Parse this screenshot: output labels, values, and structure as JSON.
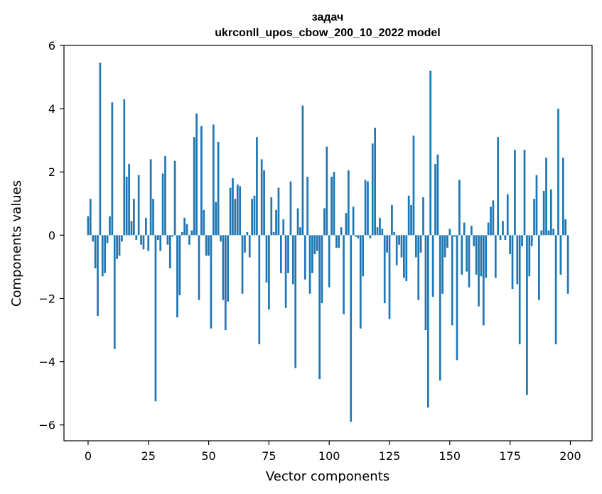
{
  "chart_data": {
    "type": "bar",
    "title_line1": "задач",
    "title_line2": "ukrconll_upos_cbow_200_10_2022 model",
    "xlabel": "Vector components",
    "ylabel": "Components values",
    "xlim": [
      -10,
      209
    ],
    "ylim": [
      -6.5,
      6
    ],
    "xticks": [
      0,
      25,
      50,
      75,
      100,
      125,
      150,
      175,
      200
    ],
    "yticks": [
      -6,
      -4,
      -2,
      0,
      2,
      4,
      6
    ],
    "ytick_labels": [
      "−6",
      "−4",
      "−2",
      "0",
      "2",
      "4",
      "6"
    ],
    "bar_color": "#1f77b4",
    "x": [
      0,
      1,
      2,
      3,
      4,
      5,
      6,
      7,
      8,
      9,
      10,
      11,
      12,
      13,
      14,
      15,
      16,
      17,
      18,
      19,
      20,
      21,
      22,
      23,
      24,
      25,
      26,
      27,
      28,
      29,
      30,
      31,
      32,
      33,
      34,
      35,
      36,
      37,
      38,
      39,
      40,
      41,
      42,
      43,
      44,
      45,
      46,
      47,
      48,
      49,
      50,
      51,
      52,
      53,
      54,
      55,
      56,
      57,
      58,
      59,
      60,
      61,
      62,
      63,
      64,
      65,
      66,
      67,
      68,
      69,
      70,
      71,
      72,
      73,
      74,
      75,
      76,
      77,
      78,
      79,
      80,
      81,
      82,
      83,
      84,
      85,
      86,
      87,
      88,
      89,
      90,
      91,
      92,
      93,
      94,
      95,
      96,
      97,
      98,
      99,
      100,
      101,
      102,
      103,
      104,
      105,
      106,
      107,
      108,
      109,
      110,
      111,
      112,
      113,
      114,
      115,
      116,
      117,
      118,
      119,
      120,
      121,
      122,
      123,
      124,
      125,
      126,
      127,
      128,
      129,
      130,
      131,
      132,
      133,
      134,
      135,
      136,
      137,
      138,
      139,
      140,
      141,
      142,
      143,
      144,
      145,
      146,
      147,
      148,
      149,
      150,
      151,
      152,
      153,
      154,
      155,
      156,
      157,
      158,
      159,
      160,
      161,
      162,
      163,
      164,
      165,
      166,
      167,
      168,
      169,
      170,
      171,
      172,
      173,
      174,
      175,
      176,
      177,
      178,
      179,
      180,
      181,
      182,
      183,
      184,
      185,
      186,
      187,
      188,
      189,
      190,
      191,
      192,
      193,
      194,
      195,
      196,
      197,
      198,
      199
    ],
    "values": [
      0.6,
      1.15,
      -0.2,
      -1.05,
      -2.55,
      5.45,
      -1.3,
      -1.2,
      -0.25,
      0.6,
      4.2,
      -3.6,
      -0.75,
      -0.65,
      -0.2,
      4.3,
      1.85,
      2.25,
      0.45,
      1.15,
      -0.15,
      1.9,
      -0.3,
      -0.45,
      0.55,
      -0.5,
      2.4,
      1.15,
      -5.25,
      -0.15,
      -0.5,
      1.95,
      2.5,
      -0.3,
      -1.05,
      -0.05,
      2.35,
      -2.6,
      -1.9,
      0.1,
      0.55,
      0.35,
      -0.3,
      0.15,
      3.1,
      3.85,
      -2.05,
      3.45,
      0.8,
      -0.65,
      -0.65,
      -2.95,
      3.5,
      1.05,
      2.95,
      -0.2,
      -2.05,
      -3.0,
      -2.1,
      1.5,
      1.8,
      1.15,
      1.6,
      1.55,
      -1.85,
      -0.55,
      0.1,
      -0.7,
      1.15,
      1.25,
      3.1,
      -3.45,
      2.4,
      2.05,
      -1.5,
      -2.35,
      1.2,
      0.1,
      0.8,
      1.5,
      -1.2,
      0.5,
      -2.3,
      -1.2,
      1.7,
      -1.55,
      -4.2,
      0.85,
      0.25,
      4.1,
      -1.4,
      1.85,
      -1.85,
      -1.2,
      -0.6,
      -0.5,
      -4.55,
      -2.15,
      0.85,
      2.8,
      -1.65,
      1.85,
      2.0,
      -0.4,
      -0.4,
      0.25,
      -2.5,
      0.7,
      2.05,
      -5.9,
      0.9,
      -0.05,
      -0.1,
      -2.95,
      -1.3,
      1.75,
      1.7,
      -0.1,
      2.9,
      3.4,
      0.25,
      0.55,
      0.2,
      -2.15,
      -0.55,
      -2.65,
      0.95,
      0.1,
      -0.95,
      -0.3,
      -0.7,
      -1.35,
      -1.45,
      1.25,
      0.95,
      3.15,
      -0.7,
      -2.05,
      -0.55,
      1.2,
      -3.0,
      -5.45,
      5.2,
      -1.95,
      2.25,
      2.55,
      -4.6,
      -1.85,
      -0.7,
      -0.4,
      0.2,
      -2.85,
      -0.05,
      -3.95,
      1.75,
      -1.25,
      0.4,
      -1.15,
      -1.65,
      0.3,
      -0.35,
      -1.25,
      -2.25,
      -1.3,
      -2.85,
      -1.35,
      0.4,
      0.9,
      1.1,
      -1.35,
      3.1,
      -0.15,
      0.45,
      -0.15,
      1.3,
      -0.6,
      -1.7,
      2.7,
      -1.55,
      -3.45,
      -0.35,
      2.7,
      -5.05,
      -1.3,
      -0.35,
      1.15,
      1.9,
      -2.05,
      0.15,
      1.4,
      2.45,
      0.15,
      1.45,
      0.2,
      -3.45,
      4.0,
      -1.25,
      2.45,
      0.5,
      -1.85
    ]
  }
}
